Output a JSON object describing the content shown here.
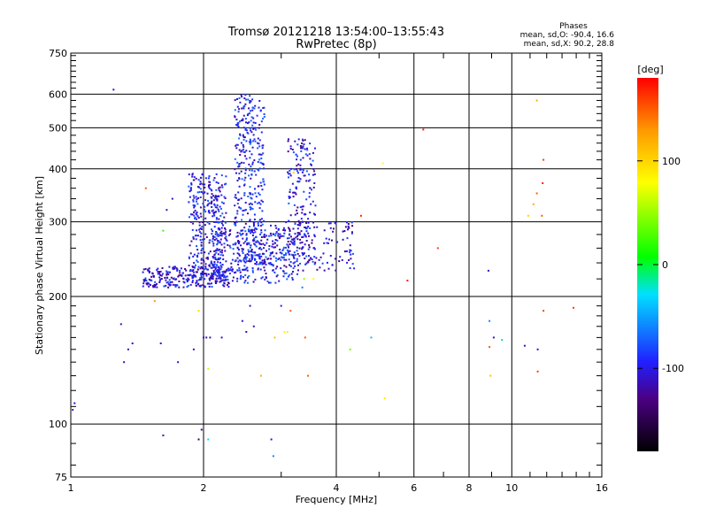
{
  "chart_data": {
    "type": "scatter",
    "title": "Tromsø 20121218 13:54:00–13:55:43",
    "subtitle": "RwPretec (8p)",
    "xlabel": "Frequency [MHz]",
    "ylabel": "Stationary phase Virtual Height [km]",
    "xscale": "log",
    "yscale": "log",
    "xlim": [
      1,
      16
    ],
    "ylim": [
      75,
      750
    ],
    "xticks": [
      1,
      2,
      4,
      6,
      8,
      10,
      16
    ],
    "yticks": [
      75,
      100,
      200,
      300,
      400,
      500,
      600,
      750
    ],
    "grid": true,
    "legend_text": {
      "title": "Phases",
      "line1": "mean, sd,O: -90.4, 16.6",
      "line2": "mean, sd,X:  90.2, 28.8"
    },
    "colorbar": {
      "label": "[deg]",
      "ticks": [
        100,
        0,
        -100
      ],
      "range": [
        -180,
        180
      ]
    },
    "clusters": [
      {
        "name": "low-frequency trace",
        "x": [
          1.45,
          2.3
        ],
        "y": [
          210,
          235
        ],
        "phase_deg": -105,
        "count": 260
      },
      {
        "name": "2 MHz vertical band",
        "x": [
          1.85,
          2.25
        ],
        "y": [
          220,
          390
        ],
        "phase_deg": -100,
        "count": 340
      },
      {
        "name": "2.5 MHz vertical band",
        "x": [
          2.35,
          2.75
        ],
        "y": [
          230,
          600
        ],
        "phase_deg": -95,
        "count": 380
      },
      {
        "name": "diffuse middle",
        "x": [
          2.1,
          3.3
        ],
        "y": [
          215,
          290
        ],
        "phase_deg": -95,
        "count": 260
      },
      {
        "name": "3.4 MHz group",
        "x": [
          3.1,
          3.6
        ],
        "y": [
          240,
          470
        ],
        "phase_deg": -100,
        "count": 180
      },
      {
        "name": "upper trace",
        "x": [
          2.6,
          4.4
        ],
        "y": [
          230,
          300
        ],
        "phase_deg": -105,
        "count": 170
      }
    ],
    "points": [
      {
        "x": 1.25,
        "y": 615,
        "phase_deg": -110
      },
      {
        "x": 1.01,
        "y": 108,
        "phase_deg": -110
      },
      {
        "x": 1.02,
        "y": 112,
        "phase_deg": -110
      },
      {
        "x": 1.3,
        "y": 172,
        "phase_deg": -110
      },
      {
        "x": 1.32,
        "y": 140,
        "phase_deg": -110
      },
      {
        "x": 1.35,
        "y": 150,
        "phase_deg": -110
      },
      {
        "x": 1.38,
        "y": 155,
        "phase_deg": -105
      },
      {
        "x": 1.48,
        "y": 360,
        "phase_deg": 150
      },
      {
        "x": 1.55,
        "y": 195,
        "phase_deg": 130
      },
      {
        "x": 1.6,
        "y": 155,
        "phase_deg": -110
      },
      {
        "x": 1.62,
        "y": 286,
        "phase_deg": 20
      },
      {
        "x": 1.65,
        "y": 320,
        "phase_deg": -110
      },
      {
        "x": 1.7,
        "y": 340,
        "phase_deg": -110
      },
      {
        "x": 1.75,
        "y": 140,
        "phase_deg": -110
      },
      {
        "x": 1.62,
        "y": 94,
        "phase_deg": -110
      },
      {
        "x": 1.9,
        "y": 150,
        "phase_deg": -110
      },
      {
        "x": 1.95,
        "y": 185,
        "phase_deg": 100
      },
      {
        "x": 1.95,
        "y": 92,
        "phase_deg": -140
      },
      {
        "x": 1.98,
        "y": 97,
        "phase_deg": -130
      },
      {
        "x": 2.0,
        "y": 160,
        "phase_deg": -115
      },
      {
        "x": 2.03,
        "y": 160,
        "phase_deg": -115
      },
      {
        "x": 2.07,
        "y": 160,
        "phase_deg": -115
      },
      {
        "x": 2.05,
        "y": 92,
        "phase_deg": -30
      },
      {
        "x": 2.05,
        "y": 135,
        "phase_deg": 60
      },
      {
        "x": 2.2,
        "y": 160,
        "phase_deg": -110
      },
      {
        "x": 2.45,
        "y": 175,
        "phase_deg": -110
      },
      {
        "x": 2.5,
        "y": 165,
        "phase_deg": -110
      },
      {
        "x": 2.55,
        "y": 190,
        "phase_deg": -110
      },
      {
        "x": 2.6,
        "y": 170,
        "phase_deg": -110
      },
      {
        "x": 2.7,
        "y": 130,
        "phase_deg": 120
      },
      {
        "x": 2.85,
        "y": 92,
        "phase_deg": -110
      },
      {
        "x": 2.88,
        "y": 84,
        "phase_deg": -60
      },
      {
        "x": 2.9,
        "y": 160,
        "phase_deg": 110
      },
      {
        "x": 3.0,
        "y": 190,
        "phase_deg": -100
      },
      {
        "x": 3.05,
        "y": 165,
        "phase_deg": 80
      },
      {
        "x": 3.1,
        "y": 165,
        "phase_deg": 85
      },
      {
        "x": 3.15,
        "y": 185,
        "phase_deg": 150
      },
      {
        "x": 3.2,
        "y": 392,
        "phase_deg": 100
      },
      {
        "x": 3.35,
        "y": 210,
        "phase_deg": -60
      },
      {
        "x": 3.38,
        "y": 220,
        "phase_deg": 50
      },
      {
        "x": 3.4,
        "y": 160,
        "phase_deg": 150
      },
      {
        "x": 3.45,
        "y": 130,
        "phase_deg": 150
      },
      {
        "x": 3.55,
        "y": 220,
        "phase_deg": 80
      },
      {
        "x": 4.3,
        "y": 150,
        "phase_deg": 40
      },
      {
        "x": 4.55,
        "y": 310,
        "phase_deg": 170
      },
      {
        "x": 4.8,
        "y": 160,
        "phase_deg": -40
      },
      {
        "x": 5.1,
        "y": 412,
        "phase_deg": 80
      },
      {
        "x": 5.15,
        "y": 115,
        "phase_deg": 90
      },
      {
        "x": 5.8,
        "y": 218,
        "phase_deg": 170
      },
      {
        "x": 6.3,
        "y": 495,
        "phase_deg": 170
      },
      {
        "x": 6.8,
        "y": 260,
        "phase_deg": 160
      },
      {
        "x": 8.85,
        "y": 230,
        "phase_deg": -110
      },
      {
        "x": 8.9,
        "y": 175,
        "phase_deg": -60
      },
      {
        "x": 8.9,
        "y": 152,
        "phase_deg": 150
      },
      {
        "x": 8.95,
        "y": 130,
        "phase_deg": 110
      },
      {
        "x": 9.1,
        "y": 160,
        "phase_deg": -110
      },
      {
        "x": 9.5,
        "y": 158,
        "phase_deg": -10
      },
      {
        "x": 10.7,
        "y": 153,
        "phase_deg": -110
      },
      {
        "x": 10.9,
        "y": 310,
        "phase_deg": 100
      },
      {
        "x": 11.2,
        "y": 330,
        "phase_deg": 120
      },
      {
        "x": 11.4,
        "y": 350,
        "phase_deg": 150
      },
      {
        "x": 11.4,
        "y": 580,
        "phase_deg": 120
      },
      {
        "x": 11.45,
        "y": 150,
        "phase_deg": -110
      },
      {
        "x": 11.45,
        "y": 133,
        "phase_deg": 160
      },
      {
        "x": 11.7,
        "y": 310,
        "phase_deg": 150
      },
      {
        "x": 11.75,
        "y": 370,
        "phase_deg": 170
      },
      {
        "x": 11.8,
        "y": 420,
        "phase_deg": 160
      },
      {
        "x": 11.8,
        "y": 185,
        "phase_deg": 160
      },
      {
        "x": 13.8,
        "y": 188,
        "phase_deg": 160
      }
    ]
  }
}
